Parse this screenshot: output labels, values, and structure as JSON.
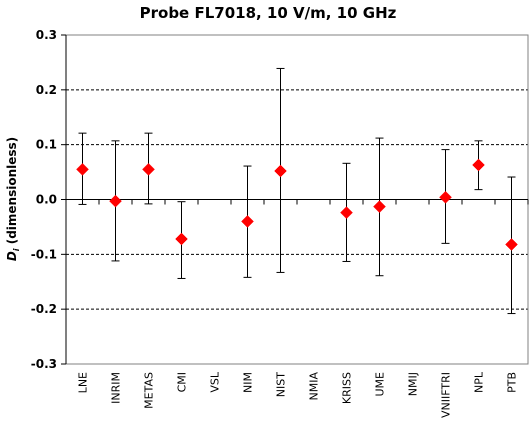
{
  "chart_data": {
    "type": "scatter",
    "title": "Probe FL7018, 10 V/m, 10 GHz",
    "xlabel": "",
    "ylabel": "Di (dimensionless)",
    "ylabel_main": "D",
    "ylabel_subscript": "i",
    "ylabel_rest": " (dimensionless)",
    "ylim": [
      -0.3,
      0.3
    ],
    "yticks": [
      -0.3,
      -0.2,
      -0.1,
      0.0,
      0.1,
      0.2,
      0.3
    ],
    "ytick_labels": [
      "-0.3",
      "-0.2",
      "-0.1",
      "0.0",
      "0.1",
      "0.2",
      "0.3"
    ],
    "grid": "horizontal dashed at major ticks",
    "zero_line": true,
    "categories": [
      "LNE",
      "INRIM",
      "METAS",
      "CMI",
      "VSL",
      "NIM",
      "NIST",
      "NMIA",
      "KRISS",
      "UME",
      "NMIJ",
      "VNIIFTRI",
      "NPL",
      "PTB"
    ],
    "series": [
      {
        "marker": "diamond",
        "color": "#ff0000",
        "values": [
          0.055,
          -0.003,
          0.055,
          -0.072,
          null,
          -0.04,
          0.052,
          null,
          -0.024,
          -0.013,
          null,
          0.004,
          0.063,
          -0.082
        ],
        "error_upper": [
          0.121,
          0.107,
          0.121,
          -0.004,
          null,
          0.061,
          0.239,
          null,
          0.066,
          0.112,
          null,
          0.091,
          0.107,
          0.041
        ],
        "error_lower": [
          -0.009,
          -0.112,
          -0.008,
          -0.144,
          null,
          -0.142,
          -0.133,
          null,
          -0.113,
          -0.139,
          null,
          -0.08,
          0.018,
          -0.208
        ]
      }
    ]
  }
}
